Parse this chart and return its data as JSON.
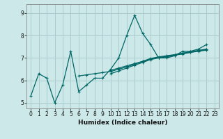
{
  "xlabel": "Humidex (Indice chaleur)",
  "background_color": "#cce8e8",
  "grid_color": "#aacccc",
  "line_color": "#006666",
  "xlim": [
    -0.5,
    23.5
  ],
  "ylim": [
    4.75,
    9.4
  ],
  "xticks": [
    0,
    1,
    2,
    3,
    4,
    5,
    6,
    7,
    8,
    9,
    10,
    11,
    12,
    13,
    14,
    15,
    16,
    17,
    18,
    19,
    20,
    21,
    22,
    23
  ],
  "yticks": [
    5,
    6,
    7,
    8,
    9
  ],
  "series": [
    [
      5.3,
      6.3,
      6.1,
      5.0,
      5.8,
      7.3,
      5.5,
      5.8,
      6.1,
      6.1,
      6.5,
      7.0,
      8.0,
      8.9,
      8.1,
      7.6,
      7.0,
      7.0,
      7.1,
      7.3,
      7.3,
      7.4,
      7.6,
      null
    ],
    [
      null,
      null,
      null,
      null,
      null,
      null,
      null,
      null,
      null,
      null,
      6.45,
      6.55,
      6.65,
      6.75,
      6.85,
      6.95,
      7.02,
      7.08,
      7.13,
      7.2,
      7.25,
      7.3,
      7.35,
      null
    ],
    [
      null,
      null,
      null,
      null,
      null,
      null,
      null,
      null,
      null,
      null,
      6.3,
      6.42,
      6.55,
      6.68,
      6.8,
      6.93,
      7.0,
      7.05,
      7.12,
      7.18,
      7.25,
      7.32,
      7.38,
      null
    ],
    [
      null,
      null,
      null,
      null,
      null,
      null,
      6.2,
      6.25,
      6.3,
      6.35,
      6.4,
      6.5,
      6.6,
      6.72,
      6.85,
      6.98,
      7.05,
      7.1,
      7.15,
      7.22,
      7.28,
      7.34,
      7.4,
      null
    ]
  ]
}
